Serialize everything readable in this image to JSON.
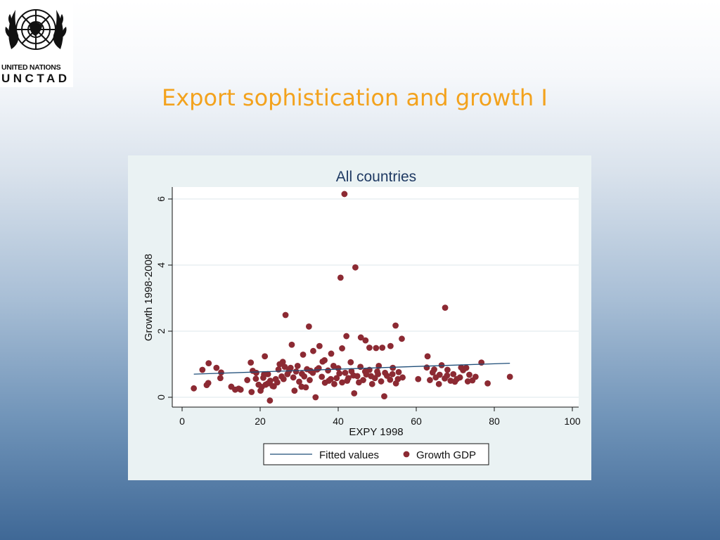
{
  "logo": {
    "line1": "UNITED NATIONS",
    "line2": "UNCTAD",
    "emblem": "un-emblem-icon"
  },
  "slide_title": "Export sophistication and growth I",
  "colors": {
    "title": "#f3a21d",
    "point": "#8c2a33",
    "fit_line": "#1f4e79",
    "chart_title": "#1f3a63",
    "panel": "#eaf2f3"
  },
  "chart_data": {
    "type": "scatter",
    "title": "All countries",
    "xlabel": "EXPY 1998",
    "ylabel": "Growth 1998-2008",
    "xlim": [
      0,
      100
    ],
    "ylim": [
      0,
      6
    ],
    "xticks": [
      "0",
      "20",
      "40",
      "60",
      "80",
      "100"
    ],
    "yticks": [
      "0",
      "2",
      "4",
      "6"
    ],
    "grid": true,
    "legend": {
      "placement": "bottom",
      "items": [
        "Fitted values",
        "Growth GDP"
      ]
    },
    "fitted": {
      "name": "Fitted values",
      "x": [
        3,
        84
      ],
      "y": [
        0.7,
        1.03
      ]
    },
    "series": [
      {
        "name": "Growth GDP",
        "points": [
          [
            41.6,
            6.15
          ],
          [
            44.4,
            3.93
          ],
          [
            40.6,
            3.62
          ],
          [
            26.5,
            2.49
          ],
          [
            67.4,
            2.71
          ],
          [
            32.5,
            2.14
          ],
          [
            42.1,
            1.85
          ],
          [
            54.7,
            2.17
          ],
          [
            45.8,
            1.81
          ],
          [
            56.3,
            1.77
          ],
          [
            47.0,
            1.72
          ],
          [
            28.1,
            1.59
          ],
          [
            35.2,
            1.55
          ],
          [
            41.0,
            1.48
          ],
          [
            48.0,
            1.5
          ],
          [
            49.7,
            1.49
          ],
          [
            51.3,
            1.5
          ],
          [
            53.4,
            1.55
          ],
          [
            62.9,
            1.24
          ],
          [
            21.2,
            1.24
          ],
          [
            31.0,
            1.29
          ],
          [
            33.6,
            1.4
          ],
          [
            36.5,
            1.12
          ],
          [
            38.2,
            1.32
          ],
          [
            43.2,
            1.06
          ],
          [
            50.4,
            0.95
          ],
          [
            25.8,
            1.07
          ],
          [
            17.6,
            1.05
          ],
          [
            6.8,
            1.03
          ],
          [
            8.8,
            0.89
          ],
          [
            5.2,
            0.83
          ],
          [
            10.0,
            0.75
          ],
          [
            12.6,
            0.32
          ],
          [
            13.6,
            0.23
          ],
          [
            15.0,
            0.23
          ],
          [
            16.7,
            0.52
          ],
          [
            17.8,
            0.16
          ],
          [
            18.9,
            0.56
          ],
          [
            19.6,
            0.38
          ],
          [
            20.1,
            0.2
          ],
          [
            20.8,
            0.59
          ],
          [
            21.4,
            0.38
          ],
          [
            22.0,
            0.7
          ],
          [
            22.6,
            0.5
          ],
          [
            23.2,
            0.34
          ],
          [
            24.0,
            0.55
          ],
          [
            24.7,
            0.84
          ],
          [
            25.5,
            0.63
          ],
          [
            26.3,
            0.92
          ],
          [
            27.0,
            0.7
          ],
          [
            27.8,
            0.89
          ],
          [
            28.5,
            0.6
          ],
          [
            29.2,
            0.78
          ],
          [
            30.0,
            0.47
          ],
          [
            30.6,
            0.32
          ],
          [
            31.3,
            0.63
          ],
          [
            32.0,
            0.85
          ],
          [
            32.7,
            0.52
          ],
          [
            33.5,
            0.74
          ],
          [
            34.2,
            0.0
          ],
          [
            35.0,
            0.88
          ],
          [
            35.8,
            0.62
          ],
          [
            36.6,
            0.44
          ],
          [
            37.4,
            0.81
          ],
          [
            38.1,
            0.55
          ],
          [
            38.8,
            0.95
          ],
          [
            39.6,
            0.58
          ],
          [
            40.3,
            0.72
          ],
          [
            41.0,
            0.45
          ],
          [
            41.8,
            0.74
          ],
          [
            42.6,
            0.58
          ],
          [
            43.4,
            0.79
          ],
          [
            44.1,
            0.12
          ],
          [
            44.9,
            0.64
          ],
          [
            45.7,
            0.92
          ],
          [
            46.4,
            0.52
          ],
          [
            47.2,
            0.69
          ],
          [
            48.0,
            0.83
          ],
          [
            48.7,
            0.4
          ],
          [
            49.4,
            0.58
          ],
          [
            50.2,
            0.7
          ],
          [
            51.0,
            0.48
          ],
          [
            51.8,
            0.03
          ],
          [
            52.5,
            0.65
          ],
          [
            53.3,
            0.53
          ],
          [
            54.0,
            0.89
          ],
          [
            54.8,
            0.42
          ],
          [
            55.5,
            0.76
          ],
          [
            56.5,
            0.6
          ],
          [
            60.5,
            0.55
          ],
          [
            62.7,
            0.9
          ],
          [
            63.5,
            0.52
          ],
          [
            64.2,
            0.75
          ],
          [
            65.0,
            0.6
          ],
          [
            65.8,
            0.4
          ],
          [
            66.5,
            0.97
          ],
          [
            67.3,
            0.57
          ],
          [
            68.0,
            0.83
          ],
          [
            68.8,
            0.5
          ],
          [
            69.5,
            0.7
          ],
          [
            70.4,
            0.55
          ],
          [
            71.2,
            0.6
          ],
          [
            72.0,
            0.82
          ],
          [
            72.8,
            0.89
          ],
          [
            73.6,
            0.68
          ],
          [
            74.4,
            0.51
          ],
          [
            75.2,
            0.62
          ],
          [
            76.7,
            1.05
          ],
          [
            78.3,
            0.42
          ],
          [
            84.0,
            0.62
          ],
          [
            3.0,
            0.27
          ],
          [
            6.3,
            0.37
          ],
          [
            6.7,
            0.43
          ],
          [
            9.8,
            0.58
          ],
          [
            14.5,
            0.26
          ],
          [
            18.1,
            0.8
          ],
          [
            19.0,
            0.74
          ],
          [
            20.4,
            0.31
          ],
          [
            21.0,
            0.69
          ],
          [
            22.0,
            0.42
          ],
          [
            22.5,
            -0.1
          ],
          [
            23.5,
            0.33
          ],
          [
            24.4,
            0.45
          ],
          [
            25.0,
            1.0
          ],
          [
            26.0,
            0.55
          ],
          [
            27.4,
            0.8
          ],
          [
            28.8,
            0.2
          ],
          [
            29.6,
            0.95
          ],
          [
            30.7,
            0.71
          ],
          [
            31.7,
            0.3
          ],
          [
            32.9,
            0.8
          ],
          [
            34.6,
            0.84
          ],
          [
            36.0,
            1.08
          ],
          [
            37.6,
            0.5
          ],
          [
            39.0,
            0.4
          ],
          [
            40.0,
            0.88
          ],
          [
            42.3,
            0.5
          ],
          [
            43.9,
            0.66
          ],
          [
            45.3,
            0.45
          ],
          [
            46.9,
            0.78
          ],
          [
            48.4,
            0.64
          ],
          [
            50.0,
            0.78
          ],
          [
            52.0,
            0.74
          ],
          [
            53.9,
            0.7
          ],
          [
            55.3,
            0.55
          ],
          [
            64.6,
            0.84
          ],
          [
            66.0,
            0.68
          ],
          [
            67.9,
            0.66
          ],
          [
            69.9,
            0.47
          ],
          [
            71.5,
            0.9
          ],
          [
            73.2,
            0.48
          ]
        ]
      }
    ]
  }
}
